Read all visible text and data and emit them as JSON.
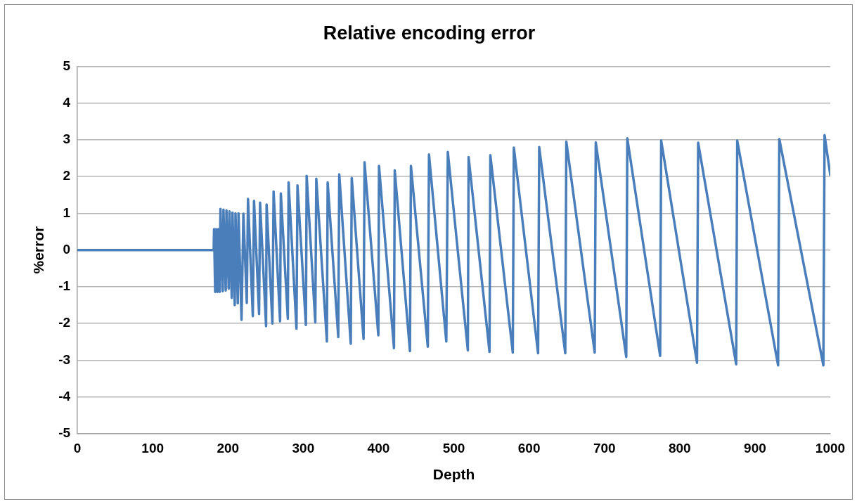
{
  "chart_data": {
    "type": "line",
    "title": "Relative encoding error",
    "xlabel": "Depth",
    "ylabel": "%error",
    "xlim": [
      0,
      1000
    ],
    "xticks": [
      0,
      100,
      200,
      300,
      400,
      500,
      600,
      700,
      800,
      900,
      1000
    ],
    "ylim": [
      -5,
      5
    ],
    "yticks": [
      -5,
      -4,
      -3,
      -2,
      -1,
      0,
      1,
      2,
      3,
      4,
      5
    ],
    "grid": "y",
    "legend": false,
    "marker": "none",
    "line_style": "solid",
    "series": [
      {
        "color": "#4a7ebb",
        "x": [
          0,
          181,
          181.5,
          183,
          184,
          186,
          187,
          189,
          190,
          193,
          194,
          197,
          198,
          201,
          202,
          205,
          206,
          209,
          210,
          213,
          214,
          218,
          220.5,
          225,
          226.6,
          233,
          234.6,
          241.3,
          242.6,
          250.6,
          251.3,
          259,
          260.6,
          269.2,
          270.2,
          279.5,
          280.5,
          291,
          292.3,
          303.5,
          304.5,
          316,
          317.3,
          331.4,
          332.4,
          346.5,
          347.8,
          363.1,
          364.4,
          380.1,
          381.4,
          399.7,
          400.6,
          420.5,
          421.5,
          441.7,
          443,
          465.4,
          467,
          490,
          492,
          518.6,
          519.6,
          547.4,
          548.5,
          578.3,
          579.7,
          611.9,
          613.4,
          648,
          649.4,
          687.1,
          688.5,
          729,
          730.4,
          774,
          775.4,
          823,
          824.5,
          875,
          876.4,
          930.7,
          932.3,
          990.8,
          992.4,
          1000
        ],
        "values": [
          0,
          0,
          0.57,
          -1.14,
          0.57,
          -1.14,
          0.57,
          -1.14,
          1.12,
          -1.12,
          1.1,
          -1.1,
          1.08,
          -1.05,
          1.05,
          -1.3,
          1.02,
          -1.5,
          1.0,
          -1.45,
          1.0,
          -1.9,
          0.99,
          -1.44,
          1.39,
          -1.8,
          1.34,
          -1.74,
          1.29,
          -2.07,
          1.24,
          -2.0,
          1.59,
          -1.94,
          1.54,
          -1.87,
          1.84,
          -2.14,
          1.76,
          -2.04,
          2.02,
          -1.97,
          1.94,
          -2.49,
          1.84,
          -2.37,
          2.06,
          -2.55,
          1.96,
          -2.42,
          2.39,
          -2.32,
          2.29,
          -2.67,
          2.17,
          -2.75,
          2.29,
          -2.63,
          2.6,
          -2.49,
          2.67,
          -2.73,
          2.53,
          -2.77,
          2.58,
          -2.79,
          2.79,
          -2.81,
          2.8,
          -2.81,
          2.95,
          -2.79,
          2.93,
          -2.91,
          3.04,
          -2.88,
          2.98,
          -3.07,
          2.92,
          -3.11,
          2.98,
          -3.14,
          3.02,
          -3.14,
          3.13,
          2.04
        ]
      }
    ]
  }
}
